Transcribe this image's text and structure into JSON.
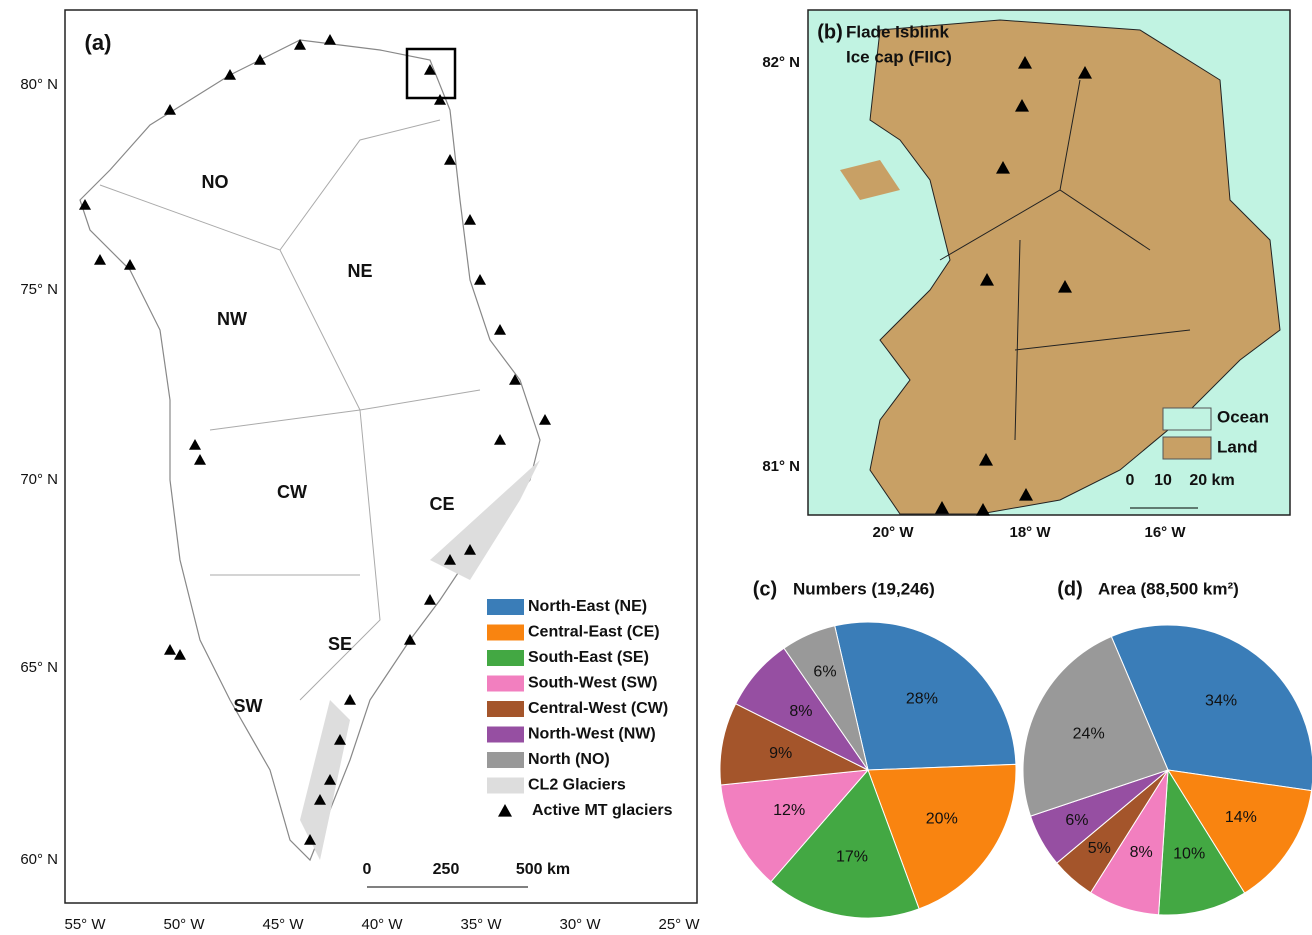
{
  "map_a": {
    "label": "(a)",
    "lat_labels": [
      "80° N",
      "75° N",
      "70° N",
      "65° N",
      "60° N"
    ],
    "lon_labels": [
      "55° W",
      "50° W",
      "45° W",
      "40° W",
      "35° W",
      "30° W",
      "25° W"
    ],
    "regions": [
      "NO",
      "NE",
      "NW",
      "CW",
      "CE",
      "SE",
      "SW"
    ],
    "scale_labels": [
      "0",
      "250",
      "500 km"
    ],
    "legend_extra": [
      "CL2 Glaciers",
      "Active MT glaciers"
    ]
  },
  "map_b": {
    "label": "(b)",
    "title_lines": [
      "Flade Isblink",
      "Ice cap (FIIC)"
    ],
    "lat_labels": [
      "82° N",
      "81° N"
    ],
    "lon_labels": [
      "20° W",
      "18° W",
      "16° W"
    ],
    "legend": [
      "Ocean",
      "Land"
    ],
    "scale_labels": [
      "0",
      "10",
      "20 km"
    ]
  },
  "chart_data": [
    {
      "type": "pie",
      "label": "(c)",
      "title": "Numbers (19,246)",
      "categories": [
        "North-East (NE)",
        "Central-East (CE)",
        "South-East (SE)",
        "South-West (SW)",
        "Central-West (CW)",
        "North-West (NW)",
        "North (NO)"
      ],
      "colors": [
        "#3a7db8",
        "#f98410",
        "#43a843",
        "#f27fbf",
        "#a4552b",
        "#964fa2",
        "#999999"
      ],
      "values": [
        28,
        20,
        17,
        12,
        9,
        8,
        6
      ],
      "value_labels": [
        "28%",
        "20%",
        "17%",
        "12%",
        "9%",
        "8%",
        "6%"
      ]
    },
    {
      "type": "pie",
      "label": "(d)",
      "title": "Area (88,500 km²)",
      "colors": [
        "#3a7db8",
        "#f98410",
        "#43a843",
        "#f27fbf",
        "#a4552b",
        "#964fa2",
        "#999999"
      ],
      "values": [
        34,
        14,
        10,
        8,
        5,
        6,
        24
      ],
      "value_labels": [
        "34%",
        "14%",
        "10%",
        "8%",
        "5%",
        "6%",
        "24%"
      ]
    }
  ]
}
